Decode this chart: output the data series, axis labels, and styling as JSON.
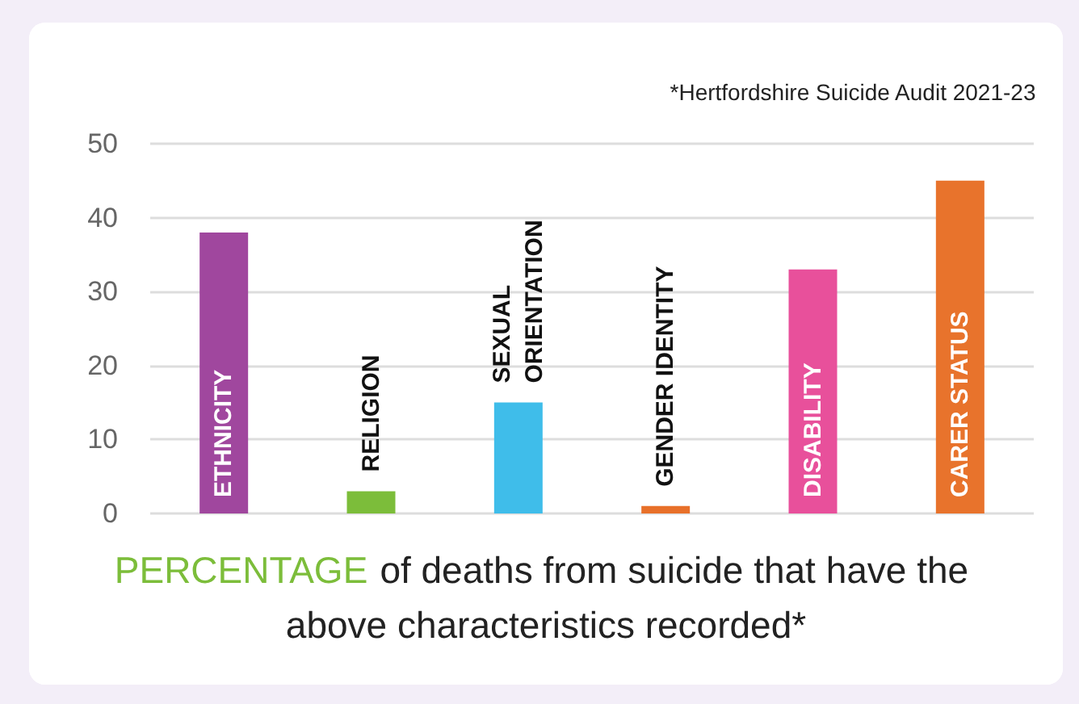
{
  "chart_data": {
    "type": "bar",
    "xlabel": "PERCENTAGE of deaths from suicide that have the above characteristics recorded*",
    "annotations": [
      "*Hertfordshire Suicide Audit 2021-23"
    ],
    "categories": [
      "ETHNICITY",
      "RELIGION",
      "SEXUAL ORIENTATION",
      "GENDER IDENTITY",
      "DISABILITY",
      "CARER STATUS"
    ],
    "values": [
      38,
      3,
      15,
      1,
      33,
      45
    ],
    "colors": [
      "#a0479e",
      "#7cbd3a",
      "#3fbdea",
      "#e8702a",
      "#e8509b",
      "#e8732c"
    ],
    "ylim": [
      0,
      50
    ],
    "yticks": [
      0,
      10,
      20,
      30,
      40,
      50
    ],
    "grid": "y"
  }
}
